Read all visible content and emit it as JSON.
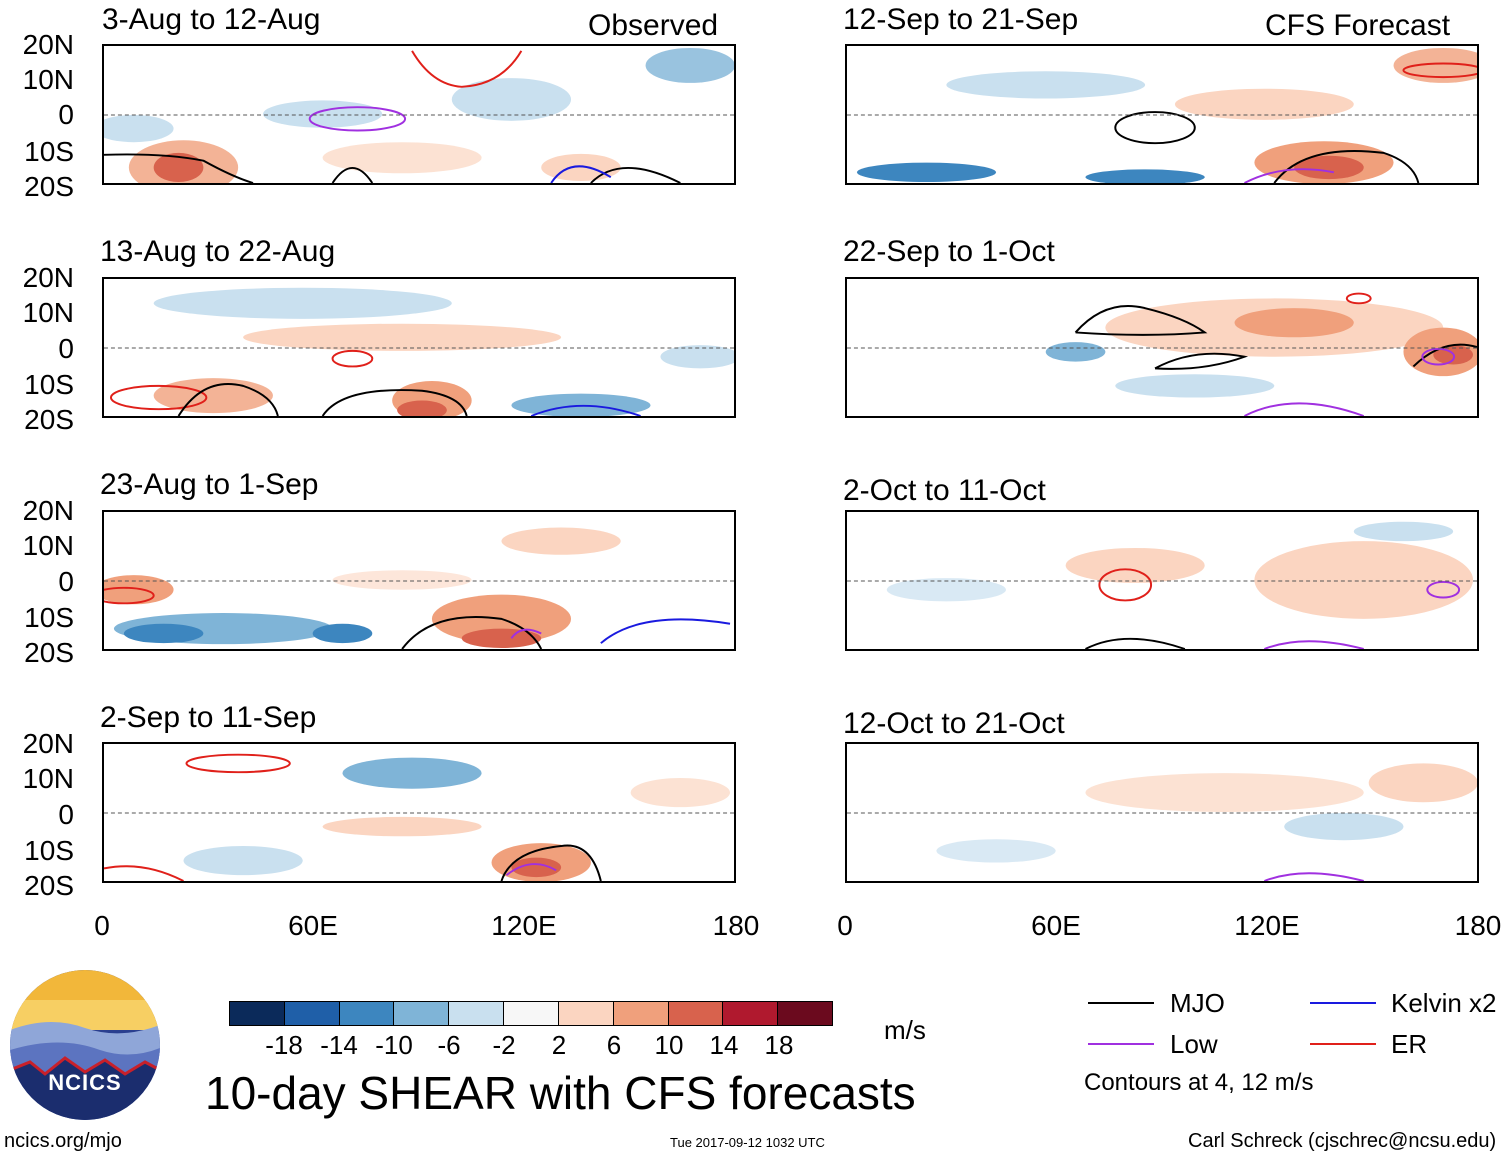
{
  "source_left": "Observed",
  "source_right": "CFS Forecast",
  "panels_left": [
    {
      "title": "3-Aug to 12-Aug"
    },
    {
      "title": "13-Aug to 22-Aug"
    },
    {
      "title": "23-Aug to 1-Sep"
    },
    {
      "title": "2-Sep to 11-Sep"
    }
  ],
  "panels_right": [
    {
      "title": "12-Sep to 21-Sep"
    },
    {
      "title": "22-Sep to 1-Oct"
    },
    {
      "title": "2-Oct to 11-Oct"
    },
    {
      "title": "12-Oct to 21-Oct"
    }
  ],
  "lat_labels": [
    "20N",
    "10N",
    "0",
    "10S",
    "20S"
  ],
  "lon_labels": [
    "0",
    "60E",
    "120E",
    "180"
  ],
  "colorbar": {
    "labels": [
      "-18",
      "-14",
      "-10",
      "-6",
      "-2",
      "2",
      "6",
      "10",
      "14",
      "18"
    ],
    "colors": [
      "#0b2a5a",
      "#1f5fa8",
      "#3d86bf",
      "#7fb4d7",
      "#c9e0ef",
      "#f7f7f7",
      "#fbd5c1",
      "#f0a07c",
      "#d8624d",
      "#b0192e",
      "#6b0a1e"
    ],
    "unit": "m/s"
  },
  "legend": {
    "items": [
      {
        "label": "MJO",
        "color": "#000000"
      },
      {
        "label": "Kelvin x2",
        "color": "#1a1adf"
      },
      {
        "label": "Low",
        "color": "#a030e0"
      },
      {
        "label": "ER",
        "color": "#e0201a"
      }
    ],
    "note": "Contours at 4, 12 m/s"
  },
  "main_title": "10-day SHEAR with CFS forecasts",
  "logo_text": "NCICS",
  "footer": {
    "url": "ncics.org/mjo",
    "timestamp": "Tue 2017-09-12 1032 UTC",
    "author": "Carl Schreck (cjschrec@ncsu.edu)"
  }
}
